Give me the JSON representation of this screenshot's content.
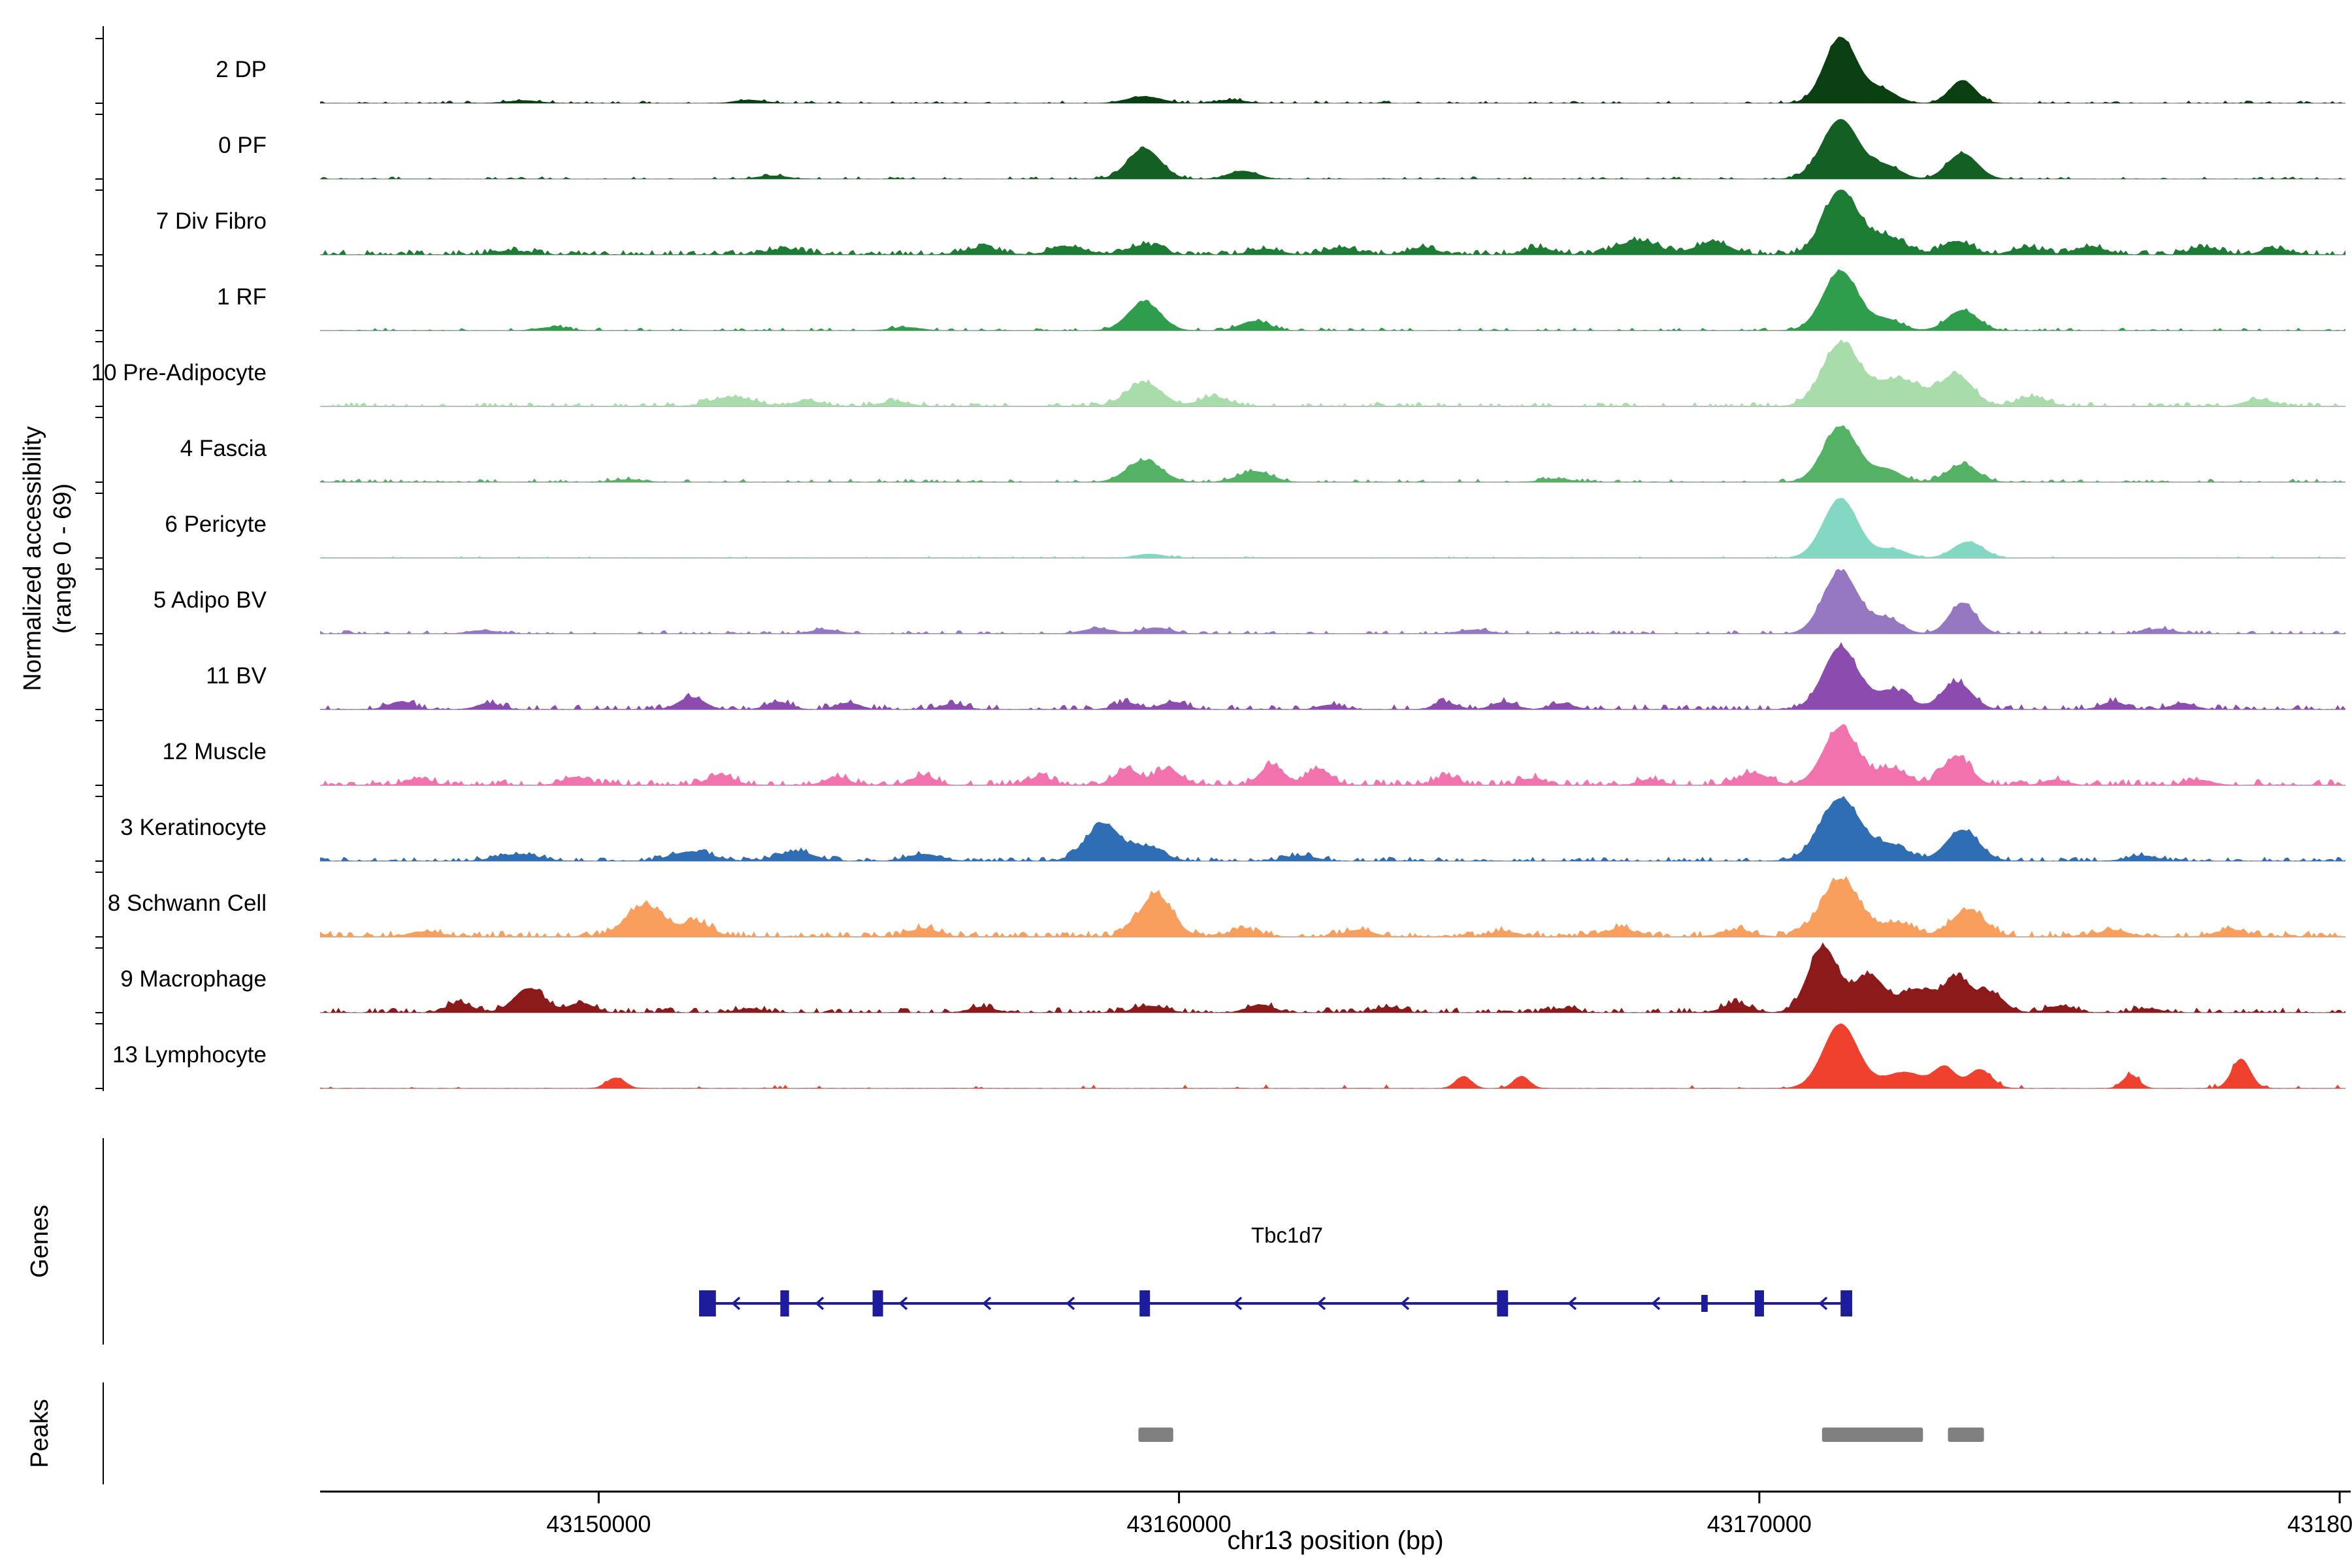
{
  "figure": {
    "y_axis_title_line1": "Normalized accessibility",
    "y_axis_title_line2": "(range 0 - 69)",
    "x_axis_title": "chr13 position (bp)",
    "genes_label": "Genes",
    "peaks_label": "Peaks",
    "gene_name": "Tbc1d7"
  },
  "chart_data": {
    "type": "area",
    "subtype": "genome-coverage-tracks",
    "title": "",
    "xlabel": "chr13 position (bp)",
    "ylabel": "Normalized accessibility (range 0 - 69)",
    "y_range_per_track": [
      0,
      69
    ],
    "region": {
      "chrom": "chr13",
      "start": 43145200,
      "end": 43180100
    },
    "x_ticks": [
      43150000,
      43160000,
      43170000,
      43180000
    ],
    "x_tick_labels": [
      "43150000",
      "43160000",
      "43170000",
      "43180000"
    ],
    "baseline_color": "#b9b9b9",
    "axis_color": "#000000",
    "tracks": [
      {
        "label": "2 DP",
        "color": "#0a3f12",
        "seed": 11,
        "noise_amp": 0.03,
        "noise_density": 0.22,
        "peaks": [
          [
            43148700,
            0.04,
            300
          ],
          [
            43152600,
            0.05,
            250
          ],
          [
            43159400,
            0.1,
            300
          ],
          [
            43160900,
            0.05,
            250
          ],
          [
            43171400,
            0.97,
            280
          ],
          [
            43172100,
            0.2,
            260
          ],
          [
            43173500,
            0.34,
            220
          ]
        ]
      },
      {
        "label": "0 PF",
        "color": "#135f24",
        "seed": 22,
        "noise_amp": 0.03,
        "noise_density": 0.22,
        "peaks": [
          [
            43153000,
            0.05,
            250
          ],
          [
            43159400,
            0.45,
            280
          ],
          [
            43161100,
            0.12,
            250
          ],
          [
            43171400,
            0.88,
            320
          ],
          [
            43172200,
            0.18,
            250
          ],
          [
            43173500,
            0.38,
            260
          ]
        ]
      },
      {
        "label": "7 Div Fibro",
        "color": "#1d7c34",
        "seed": 33,
        "noise_amp": 0.06,
        "noise_density": 0.5,
        "peaks": [
          [
            43148500,
            0.06,
            300
          ],
          [
            43153200,
            0.08,
            300
          ],
          [
            43156600,
            0.1,
            300
          ],
          [
            43158100,
            0.12,
            280
          ],
          [
            43159400,
            0.14,
            280
          ],
          [
            43161500,
            0.08,
            250
          ],
          [
            43162800,
            0.1,
            250
          ],
          [
            43164200,
            0.1,
            250
          ],
          [
            43166200,
            0.1,
            250
          ],
          [
            43167900,
            0.2,
            350
          ],
          [
            43169200,
            0.18,
            300
          ],
          [
            43171400,
            0.95,
            300
          ],
          [
            43172200,
            0.26,
            300
          ],
          [
            43173400,
            0.2,
            250
          ],
          [
            43174600,
            0.1,
            250
          ],
          [
            43175700,
            0.12,
            250
          ],
          [
            43177700,
            0.1,
            250
          ],
          [
            43178900,
            0.08,
            250
          ]
        ]
      },
      {
        "label": "1 RF",
        "color": "#2f9e4c",
        "seed": 44,
        "noise_amp": 0.035,
        "noise_density": 0.26,
        "peaks": [
          [
            43149200,
            0.05,
            250
          ],
          [
            43155300,
            0.05,
            250
          ],
          [
            43159400,
            0.42,
            280
          ],
          [
            43161300,
            0.14,
            250
          ],
          [
            43171400,
            0.88,
            300
          ],
          [
            43172200,
            0.16,
            250
          ],
          [
            43173500,
            0.3,
            260
          ]
        ]
      },
      {
        "label": "10 Pre-Adipocyte",
        "color": "#a8dcaa",
        "seed": 55,
        "noise_amp": 0.05,
        "noise_density": 0.38,
        "peaks": [
          [
            43152300,
            0.14,
            350
          ],
          [
            43153600,
            0.08,
            250
          ],
          [
            43155100,
            0.07,
            250
          ],
          [
            43159400,
            0.35,
            300
          ],
          [
            43160600,
            0.14,
            250
          ],
          [
            43171400,
            0.92,
            320
          ],
          [
            43172400,
            0.4,
            400
          ],
          [
            43173400,
            0.45,
            280
          ],
          [
            43174700,
            0.14,
            250
          ],
          [
            43178600,
            0.1,
            250
          ]
        ]
      },
      {
        "label": "4 Fascia",
        "color": "#53b264",
        "seed": 66,
        "noise_amp": 0.04,
        "noise_density": 0.28,
        "peaks": [
          [
            43150500,
            0.04,
            250
          ],
          [
            43159400,
            0.32,
            300
          ],
          [
            43161300,
            0.16,
            280
          ],
          [
            43166500,
            0.05,
            250
          ],
          [
            43171400,
            0.82,
            300
          ],
          [
            43172200,
            0.18,
            250
          ],
          [
            43173500,
            0.26,
            260
          ]
        ]
      },
      {
        "label": "6 Pericyte",
        "color": "#82d8c3",
        "seed": 77,
        "noise_amp": 0.02,
        "noise_density": 0.18,
        "peaks": [
          [
            43159500,
            0.06,
            250
          ],
          [
            43171400,
            0.88,
            300
          ],
          [
            43172300,
            0.13,
            250
          ],
          [
            43173600,
            0.24,
            260
          ]
        ]
      },
      {
        "label": "5 Adipo BV",
        "color": "#9577c2",
        "seed": 88,
        "noise_amp": 0.04,
        "noise_density": 0.3,
        "peaks": [
          [
            43148000,
            0.05,
            250
          ],
          [
            43153900,
            0.06,
            250
          ],
          [
            43158600,
            0.08,
            250
          ],
          [
            43159600,
            0.09,
            250
          ],
          [
            43165100,
            0.06,
            250
          ],
          [
            43171400,
            0.92,
            300
          ],
          [
            43172200,
            0.22,
            250
          ],
          [
            43173500,
            0.45,
            230
          ],
          [
            43176900,
            0.07,
            250
          ]
        ]
      },
      {
        "label": "11 BV",
        "color": "#8c4bae",
        "seed": 99,
        "noise_amp": 0.06,
        "noise_density": 0.28,
        "peaks": [
          [
            43146600,
            0.12,
            200
          ],
          [
            43148100,
            0.09,
            200
          ],
          [
            43151600,
            0.18,
            220
          ],
          [
            43153100,
            0.11,
            200
          ],
          [
            43154300,
            0.1,
            200
          ],
          [
            43156100,
            0.08,
            200
          ],
          [
            43159100,
            0.1,
            200
          ],
          [
            43159900,
            0.11,
            200
          ],
          [
            43162600,
            0.07,
            200
          ],
          [
            43164600,
            0.1,
            200
          ],
          [
            43165600,
            0.11,
            200
          ],
          [
            43166600,
            0.09,
            200
          ],
          [
            43171400,
            0.92,
            300
          ],
          [
            43172300,
            0.28,
            280
          ],
          [
            43173400,
            0.4,
            260
          ],
          [
            43176100,
            0.11,
            200
          ],
          [
            43177300,
            0.09,
            200
          ]
        ]
      },
      {
        "label": "12 Muscle",
        "color": "#f272ae",
        "seed": 110,
        "noise_amp": 0.07,
        "noise_density": 0.42,
        "peaks": [
          [
            43146900,
            0.1,
            200
          ],
          [
            43149600,
            0.12,
            220
          ],
          [
            43152100,
            0.15,
            220
          ],
          [
            43154100,
            0.12,
            200
          ],
          [
            43155600,
            0.14,
            200
          ],
          [
            43157600,
            0.12,
            200
          ],
          [
            43159100,
            0.24,
            200
          ],
          [
            43159800,
            0.24,
            220
          ],
          [
            43161600,
            0.3,
            200
          ],
          [
            43162400,
            0.24,
            200
          ],
          [
            43164600,
            0.12,
            200
          ],
          [
            43166100,
            0.1,
            200
          ],
          [
            43168100,
            0.08,
            200
          ],
          [
            43169900,
            0.18,
            260
          ],
          [
            43171400,
            0.85,
            300
          ],
          [
            43172300,
            0.24,
            250
          ],
          [
            43173400,
            0.42,
            240
          ],
          [
            43175100,
            0.08,
            200
          ],
          [
            43177600,
            0.08,
            200
          ]
        ]
      },
      {
        "label": "3 Keratinocyte",
        "color": "#2f6eb5",
        "seed": 121,
        "noise_amp": 0.05,
        "noise_density": 0.42,
        "peaks": [
          [
            43148600,
            0.1,
            350
          ],
          [
            43151600,
            0.14,
            350
          ],
          [
            43153400,
            0.14,
            300
          ],
          [
            43155600,
            0.1,
            280
          ],
          [
            43158700,
            0.55,
            300
          ],
          [
            43159500,
            0.2,
            250
          ],
          [
            43162100,
            0.08,
            250
          ],
          [
            43171400,
            0.92,
            350
          ],
          [
            43172300,
            0.22,
            280
          ],
          [
            43173500,
            0.46,
            280
          ],
          [
            43176600,
            0.08,
            250
          ]
        ]
      },
      {
        "label": "8 Schwann Cell",
        "color": "#f99f5e",
        "seed": 132,
        "noise_amp": 0.07,
        "noise_density": 0.5,
        "peaks": [
          [
            43147000,
            0.08,
            250
          ],
          [
            43150800,
            0.46,
            330
          ],
          [
            43151700,
            0.2,
            250
          ],
          [
            43155600,
            0.12,
            250
          ],
          [
            43159600,
            0.62,
            280
          ],
          [
            43161100,
            0.1,
            250
          ],
          [
            43163100,
            0.1,
            250
          ],
          [
            43165600,
            0.08,
            250
          ],
          [
            43167600,
            0.12,
            250
          ],
          [
            43169600,
            0.1,
            250
          ],
          [
            43171400,
            0.85,
            330
          ],
          [
            43172400,
            0.2,
            280
          ],
          [
            43173600,
            0.4,
            280
          ],
          [
            43176100,
            0.1,
            250
          ],
          [
            43178100,
            0.1,
            250
          ]
        ]
      },
      {
        "label": "9 Macrophage",
        "color": "#8c1a1a",
        "seed": 143,
        "noise_amp": 0.06,
        "noise_density": 0.36,
        "peaks": [
          [
            43147600,
            0.14,
            220
          ],
          [
            43148800,
            0.36,
            260
          ],
          [
            43149700,
            0.14,
            220
          ],
          [
            43152600,
            0.06,
            220
          ],
          [
            43156600,
            0.08,
            220
          ],
          [
            43159500,
            0.1,
            260
          ],
          [
            43161400,
            0.12,
            220
          ],
          [
            43163600,
            0.08,
            220
          ],
          [
            43166600,
            0.06,
            220
          ],
          [
            43169600,
            0.14,
            220
          ],
          [
            43171100,
            0.97,
            260
          ],
          [
            43171900,
            0.55,
            260
          ],
          [
            43172700,
            0.34,
            260
          ],
          [
            43173400,
            0.52,
            240
          ],
          [
            43174000,
            0.28,
            220
          ],
          [
            43175200,
            0.1,
            220
          ],
          [
            43176700,
            0.06,
            220
          ]
        ]
      },
      {
        "label": "13 Lymphocyte",
        "color": "#f0402e",
        "seed": 154,
        "noise_amp": 0.05,
        "noise_density": 0.06,
        "peaks": [
          [
            43150300,
            0.16,
            160
          ],
          [
            43164900,
            0.18,
            140
          ],
          [
            43165900,
            0.18,
            140
          ],
          [
            43171400,
            0.95,
            300
          ],
          [
            43172500,
            0.24,
            350
          ],
          [
            43173200,
            0.3,
            180
          ],
          [
            43173800,
            0.28,
            200
          ],
          [
            43176400,
            0.2,
            140
          ],
          [
            43178300,
            0.44,
            160
          ]
        ]
      }
    ],
    "gene": {
      "name": "Tbc1d7",
      "strand": "-",
      "color": "#1c1c9c",
      "start": 43151730,
      "end": 43171600,
      "exons": [
        [
          43151730,
          43152020,
          1
        ],
        [
          43153130,
          43153280,
          1
        ],
        [
          43154720,
          43154900,
          1
        ],
        [
          43159320,
          43159500,
          1
        ],
        [
          43165480,
          43165670,
          1
        ],
        [
          43169000,
          43169110,
          0
        ],
        [
          43169920,
          43170080,
          1
        ],
        [
          43171400,
          43171600,
          1
        ]
      ]
    },
    "peak_boxes": [
      [
        43159300,
        43159900
      ],
      [
        43171080,
        43172820
      ],
      [
        43173250,
        43173870
      ]
    ],
    "peak_color": "#808080"
  }
}
